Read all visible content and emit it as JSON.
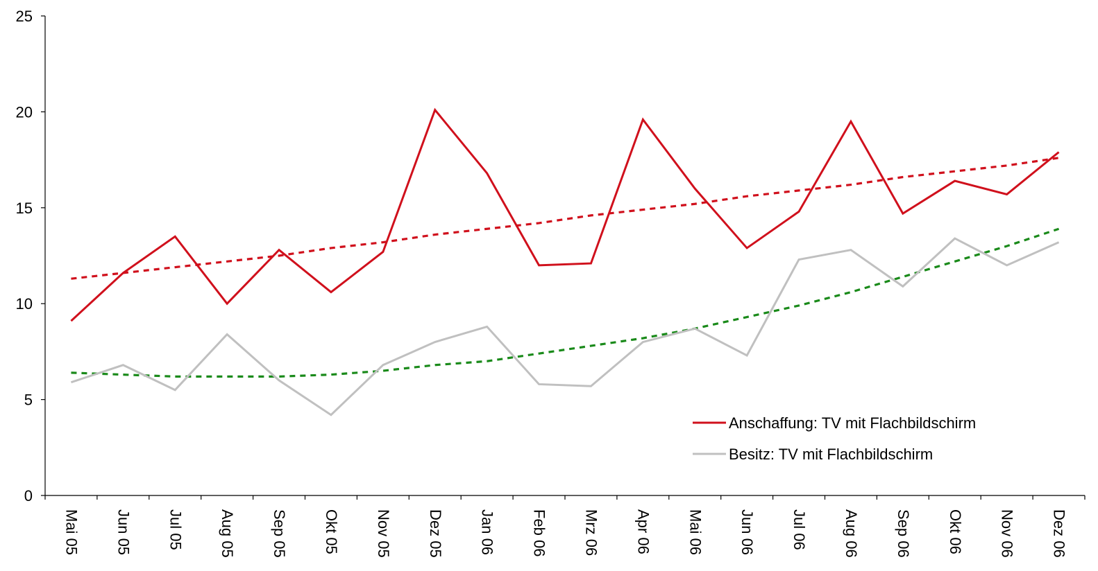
{
  "chart_data": {
    "type": "line",
    "title": "",
    "xlabel": "",
    "ylabel": "",
    "ylim": [
      0,
      25
    ],
    "yticks": [
      "0",
      "5",
      "10",
      "15",
      "20",
      "25"
    ],
    "categories": [
      "Mai 05",
      "Jun 05",
      "Jul 05",
      "Aug 05",
      "Sep 05",
      "Okt 05",
      "Nov 05",
      "Dez 05",
      "Jan 06",
      "Feb 06",
      "Mrz 06",
      "Apr 06",
      "Mai 06",
      "Jun 06",
      "Jul 06",
      "Aug 06",
      "Sep 06",
      "Okt 06",
      "Nov 06",
      "Dez 06"
    ],
    "series": [
      {
        "name": "Anschaffung: TV mit Flachbildschirm",
        "color": "#d0101c",
        "values": [
          9.1,
          11.6,
          13.5,
          10.0,
          12.8,
          10.6,
          12.7,
          20.1,
          16.8,
          12.0,
          12.1,
          19.6,
          16.0,
          12.9,
          14.8,
          19.5,
          14.7,
          16.4,
          15.7,
          17.9
        ]
      },
      {
        "name": "Besitz: TV mit Flachbildschirm",
        "color": "#c0c0c0",
        "values": [
          5.9,
          6.8,
          5.5,
          8.4,
          6.0,
          4.2,
          6.8,
          8.0,
          8.8,
          5.8,
          5.7,
          8.0,
          8.7,
          7.3,
          12.3,
          12.8,
          10.9,
          13.4,
          12.0,
          13.2
        ]
      }
    ],
    "trendlines": [
      {
        "color": "#d0101c",
        "style": "dotted",
        "values": [
          11.3,
          11.6,
          11.9,
          12.2,
          12.5,
          12.9,
          13.2,
          13.6,
          13.9,
          14.2,
          14.6,
          14.9,
          15.2,
          15.6,
          15.9,
          16.2,
          16.6,
          16.9,
          17.2,
          17.6
        ]
      },
      {
        "color": "#1a8a1a",
        "style": "dotted",
        "values": [
          6.4,
          6.3,
          6.2,
          6.2,
          6.2,
          6.3,
          6.5,
          6.8,
          7.0,
          7.4,
          7.8,
          8.2,
          8.7,
          9.3,
          9.9,
          10.6,
          11.4,
          12.2,
          13.0,
          13.9
        ]
      }
    ],
    "legend_position": "bottom-right",
    "grid": false
  }
}
